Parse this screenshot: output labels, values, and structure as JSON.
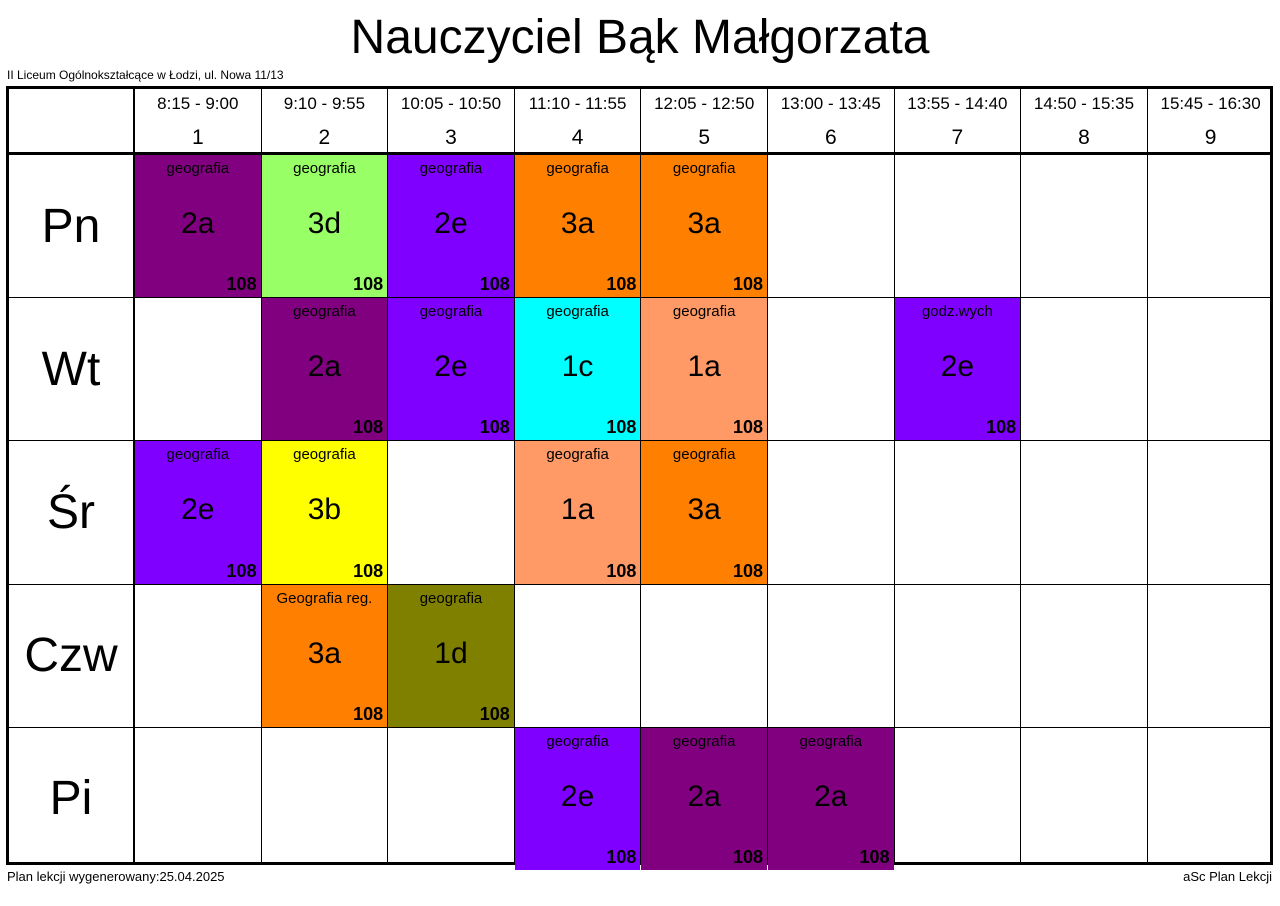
{
  "title": "Nauczyciel Bąk Małgorzata",
  "school": "II Liceum Ogólnokształcące w Łodzi, ul. Nowa 11/13",
  "footer": {
    "generated": "Plan lekcji wygenerowany:25.04.2025",
    "brand": "aSc Plan Lekcji"
  },
  "periods": [
    {
      "num": "1",
      "time": "8:15 - 9:00"
    },
    {
      "num": "2",
      "time": "9:10 - 9:55"
    },
    {
      "num": "3",
      "time": "10:05 - 10:50"
    },
    {
      "num": "4",
      "time": "11:10 - 11:55"
    },
    {
      "num": "5",
      "time": "12:05 - 12:50"
    },
    {
      "num": "6",
      "time": "13:00 - 13:45"
    },
    {
      "num": "7",
      "time": "13:55 - 14:40"
    },
    {
      "num": "8",
      "time": "14:50 - 15:35"
    },
    {
      "num": "9",
      "time": "15:45 - 16:30"
    }
  ],
  "days": [
    "Pn",
    "Wt",
    "Śr",
    "Czw",
    "Pi"
  ],
  "lessons": [
    {
      "day": 0,
      "period": 1,
      "subject": "geografia",
      "class": "2a",
      "room": "108",
      "color": "#800080"
    },
    {
      "day": 0,
      "period": 2,
      "subject": "geografia",
      "class": "3d",
      "room": "108",
      "color": "#99ff66"
    },
    {
      "day": 0,
      "period": 3,
      "subject": "geografia",
      "class": "2e",
      "room": "108",
      "color": "#8000ff"
    },
    {
      "day": 0,
      "period": 4,
      "subject": "geografia",
      "class": "3a",
      "room": "108",
      "color": "#ff8000"
    },
    {
      "day": 0,
      "period": 5,
      "subject": "geografia",
      "class": "3a",
      "room": "108",
      "color": "#ff8000"
    },
    {
      "day": 1,
      "period": 2,
      "subject": "geografia",
      "class": "2a",
      "room": "108",
      "color": "#800080"
    },
    {
      "day": 1,
      "period": 3,
      "subject": "geografia",
      "class": "2e",
      "room": "108",
      "color": "#8000ff"
    },
    {
      "day": 1,
      "period": 4,
      "subject": "geografia",
      "class": "1c",
      "room": "108",
      "color": "#00ffff"
    },
    {
      "day": 1,
      "period": 5,
      "subject": "geografia",
      "class": "1a",
      "room": "108",
      "color": "#ff9966"
    },
    {
      "day": 1,
      "period": 7,
      "subject": "godz.wych",
      "class": "2e",
      "room": "108",
      "color": "#8000ff"
    },
    {
      "day": 2,
      "period": 1,
      "subject": "geografia",
      "class": "2e",
      "room": "108",
      "color": "#8000ff"
    },
    {
      "day": 2,
      "period": 2,
      "subject": "geografia",
      "class": "3b",
      "room": "108",
      "color": "#ffff00"
    },
    {
      "day": 2,
      "period": 4,
      "subject": "geografia",
      "class": "1a",
      "room": "108",
      "color": "#ff9966"
    },
    {
      "day": 2,
      "period": 5,
      "subject": "geografia",
      "class": "3a",
      "room": "108",
      "color": "#ff8000"
    },
    {
      "day": 3,
      "period": 2,
      "subject": "Geografia reg.",
      "class": "3a",
      "room": "108",
      "color": "#ff8000"
    },
    {
      "day": 3,
      "period": 3,
      "subject": "geografia",
      "class": "1d",
      "room": "108",
      "color": "#808000"
    },
    {
      "day": 4,
      "period": 4,
      "subject": "geografia",
      "class": "2e",
      "room": "108",
      "color": "#8000ff"
    },
    {
      "day": 4,
      "period": 5,
      "subject": "geografia",
      "class": "2a",
      "room": "108",
      "color": "#800080"
    },
    {
      "day": 4,
      "period": 6,
      "subject": "geografia",
      "class": "2a",
      "room": "108",
      "color": "#800080"
    }
  ]
}
